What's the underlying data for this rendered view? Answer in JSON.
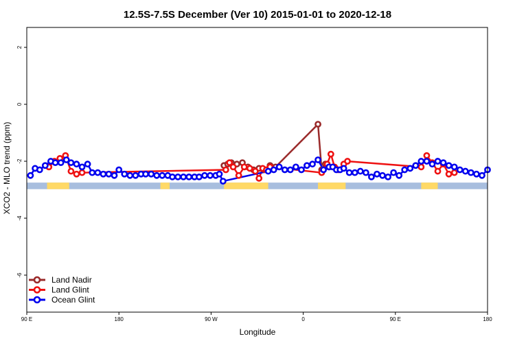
{
  "chart_data": {
    "type": "line",
    "title": "12.5S-7.5S December (Ver 10)   2015-01-01 to 2020-12-18",
    "xlabel": "Longitude",
    "ylabel": "XCO2 - MLO trend (ppm)",
    "xlim": [
      0,
      500
    ],
    "ylim": [
      -7.3,
      2.7
    ],
    "x_ticks": [
      {
        "value": 0,
        "label": "90 E"
      },
      {
        "value": 100,
        "label": "180"
      },
      {
        "value": 200,
        "label": "90 W"
      },
      {
        "value": 300,
        "label": "0"
      },
      {
        "value": 400,
        "label": "90 E"
      },
      {
        "value": 500,
        "label": "180"
      }
    ],
    "y_ticks": [
      {
        "value": 2,
        "label": "2"
      },
      {
        "value": 0,
        "label": "0"
      },
      {
        "value": -2,
        "label": "-2"
      },
      {
        "value": -4,
        "label": "-4"
      },
      {
        "value": -6,
        "label": "-6"
      }
    ],
    "grid": false,
    "legend_position": "bottom-left",
    "band": {
      "y_top": -2.75,
      "y_bottom": -2.98,
      "ocean_color": "#a8bede",
      "land_color": "#ffd966",
      "land_segments": [
        [
          214,
          262
        ],
        [
          316,
          346
        ],
        [
          22,
          46
        ],
        [
          428,
          446
        ],
        [
          145,
          155
        ]
      ]
    },
    "series": [
      {
        "name": "Land Nadir",
        "color": "#9a2a2a",
        "x": [
          214,
          218,
          222,
          228,
          234,
          240,
          246,
          252,
          258,
          264,
          270,
          316,
          320,
          324,
          328
        ],
        "y": [
          -2.15,
          -2.1,
          -2.05,
          -2.1,
          -2.05,
          -2.2,
          -2.3,
          -2.25,
          -2.3,
          -2.15,
          -2.2,
          -0.7,
          -2.3,
          -2.1,
          -2.2
        ]
      },
      {
        "name": "Land Glint",
        "color": "#ee1111",
        "x": [
          24,
          30,
          36,
          42,
          48,
          54,
          60,
          216,
          220,
          224,
          230,
          236,
          242,
          248,
          252,
          256,
          260,
          264,
          320,
          326,
          330,
          334,
          338,
          344,
          348,
          428,
          434,
          440,
          446,
          452,
          458,
          464
        ],
        "y": [
          -2.2,
          -2.0,
          -1.9,
          -1.8,
          -2.35,
          -2.45,
          -2.4,
          -2.3,
          -2.05,
          -2.2,
          -2.5,
          -2.2,
          -2.25,
          -2.35,
          -2.6,
          -2.25,
          -2.3,
          -2.2,
          -2.4,
          -2.1,
          -1.75,
          -2.2,
          -2.3,
          -2.1,
          -2.0,
          -2.2,
          -1.8,
          -2.05,
          -2.35,
          -2.1,
          -2.45,
          -2.4
        ]
      },
      {
        "name": "Ocean Glint",
        "color": "#0000ee",
        "x": [
          4,
          9,
          14,
          20,
          26,
          31,
          37,
          43,
          48,
          54,
          60,
          66,
          71,
          77,
          83,
          89,
          95,
          100,
          106,
          112,
          118,
          124,
          129,
          135,
          141,
          147,
          153,
          158,
          164,
          170,
          176,
          182,
          187,
          193,
          199,
          205,
          209,
          213,
          262,
          268,
          274,
          280,
          286,
          292,
          298,
          304,
          310,
          316,
          322,
          328,
          332,
          336,
          340,
          344,
          350,
          356,
          362,
          368,
          374,
          380,
          386,
          392,
          398,
          404,
          410,
          416,
          422,
          428,
          434,
          440,
          446,
          452,
          458,
          464,
          470,
          476,
          482,
          488,
          494,
          500
        ],
        "y": [
          -2.5,
          -2.25,
          -2.3,
          -2.15,
          -2.0,
          -2.05,
          -2.05,
          -1.95,
          -2.05,
          -2.1,
          -2.2,
          -2.1,
          -2.4,
          -2.4,
          -2.45,
          -2.45,
          -2.5,
          -2.3,
          -2.45,
          -2.5,
          -2.5,
          -2.45,
          -2.45,
          -2.45,
          -2.5,
          -2.5,
          -2.5,
          -2.55,
          -2.55,
          -2.55,
          -2.55,
          -2.55,
          -2.55,
          -2.5,
          -2.5,
          -2.5,
          -2.45,
          -2.7,
          -2.35,
          -2.3,
          -2.2,
          -2.3,
          -2.3,
          -2.2,
          -2.3,
          -2.15,
          -2.1,
          -1.95,
          -2.3,
          -2.2,
          -2.2,
          -2.3,
          -2.3,
          -2.25,
          -2.4,
          -2.4,
          -2.35,
          -2.4,
          -2.55,
          -2.45,
          -2.5,
          -2.55,
          -2.4,
          -2.5,
          -2.3,
          -2.25,
          -2.15,
          -2.0,
          -2.0,
          -2.1,
          -2.0,
          -2.05,
          -2.15,
          -2.2,
          -2.3,
          -2.35,
          -2.4,
          -2.45,
          -2.5,
          -2.3
        ]
      }
    ]
  }
}
